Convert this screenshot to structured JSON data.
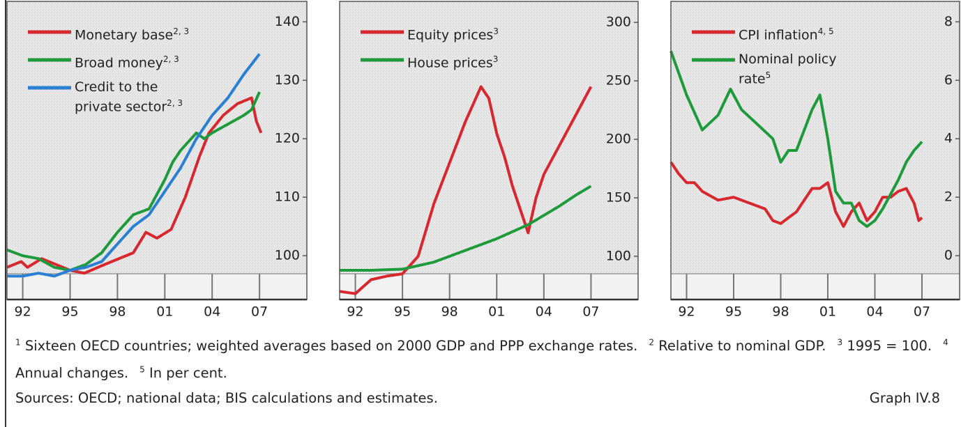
{
  "chart_data": [
    {
      "type": "line",
      "xlim": [
        1991,
        2010
      ],
      "xticks": [
        {
          "value": 1992,
          "label": "92"
        },
        {
          "value": 1995,
          "label": "95"
        },
        {
          "value": 1998,
          "label": "98"
        },
        {
          "value": 2001,
          "label": "01"
        },
        {
          "value": 2004,
          "label": "04"
        },
        {
          "value": 2007,
          "label": "07"
        }
      ],
      "ylim": [
        92.5,
        143.5
      ],
      "yticks": [
        100,
        110,
        120,
        130,
        140
      ],
      "series": [
        {
          "name": "Monetary base",
          "footnote": "2, 3",
          "color": "#d6282e",
          "x": [
            1991,
            1991.9,
            1992.3,
            1993.2,
            1995,
            1995.9,
            1997.2,
            1999,
            1999.8,
            2000.5,
            2001.4,
            2002.3,
            2003.2,
            2003.8,
            2004.7,
            2005.6,
            2006.5,
            2006.8,
            2007.1
          ],
          "values": [
            98,
            99,
            98,
            99.5,
            97.5,
            97,
            98.5,
            100.5,
            104,
            103,
            104.5,
            110,
            117,
            121,
            124,
            126,
            127,
            123,
            121
          ]
        },
        {
          "name": "Broad money",
          "footnote": "2, 3",
          "color": "#1e9a3c",
          "x": [
            1991,
            1992,
            1993,
            1994,
            1995,
            1996,
            1997,
            1998,
            1999,
            2000,
            2001,
            2001.5,
            2002,
            2003,
            2003.5,
            2004,
            2005,
            2006,
            2006.5,
            2007
          ],
          "values": [
            101,
            100,
            99.5,
            98,
            97.5,
            98.5,
            100.5,
            104,
            107,
            108,
            113,
            116,
            118,
            121,
            120,
            121,
            122.5,
            124,
            125,
            128
          ]
        },
        {
          "name": "Credit to the private sector",
          "footnote": "2, 3",
          "color": "#2a7fd4",
          "x": [
            1991,
            1992,
            1993,
            1994,
            1995,
            1996,
            1997,
            1998,
            1999,
            2000,
            2001,
            2002,
            2003,
            2004,
            2005,
            2006,
            2007
          ],
          "values": [
            96.5,
            96.5,
            97,
            96.5,
            97.5,
            98,
            99,
            102,
            105,
            107,
            111,
            115,
            120,
            124,
            127,
            131,
            134.5
          ]
        }
      ]
    },
    {
      "type": "line",
      "xlim": [
        1991,
        2010
      ],
      "xticks": [
        {
          "value": 1992,
          "label": "92"
        },
        {
          "value": 1995,
          "label": "95"
        },
        {
          "value": 1998,
          "label": "98"
        },
        {
          "value": 2001,
          "label": "01"
        },
        {
          "value": 2004,
          "label": "04"
        },
        {
          "value": 2007,
          "label": "07"
        }
      ],
      "ylim": [
        63,
        318
      ],
      "yticks": [
        100,
        150,
        200,
        250,
        300
      ],
      "series": [
        {
          "name": "Equity prices",
          "footnote": "3",
          "color": "#d6282e",
          "x": [
            1991,
            1992,
            1993,
            1994,
            1995,
            1996,
            1997,
            1998,
            1999,
            2000,
            2000.5,
            2001,
            2001.5,
            2002,
            2002.5,
            2003,
            2003.5,
            2004,
            2005,
            2006,
            2007
          ],
          "values": [
            70,
            68,
            80,
            83,
            85,
            100,
            145,
            180,
            215,
            245,
            235,
            205,
            185,
            160,
            140,
            120,
            150,
            170,
            195,
            220,
            245
          ]
        },
        {
          "name": "House prices",
          "footnote": "3",
          "color": "#1e9a3c",
          "x": [
            1991,
            1993,
            1995,
            1997,
            1999,
            2001,
            2003,
            2005,
            2006,
            2007
          ],
          "values": [
            88,
            88,
            89,
            95,
            105,
            115,
            127,
            143,
            152,
            160
          ]
        }
      ]
    },
    {
      "type": "line",
      "xlim": [
        1991,
        2009.4
      ],
      "xticks": [
        {
          "value": 1992,
          "label": "92"
        },
        {
          "value": 1995,
          "label": "95"
        },
        {
          "value": 1998,
          "label": "98"
        },
        {
          "value": 2001,
          "label": "01"
        },
        {
          "value": 2004,
          "label": "04"
        },
        {
          "value": 2007,
          "label": "07"
        }
      ],
      "ylim": [
        -1.5,
        8.7
      ],
      "yticks": [
        0,
        2,
        4,
        6,
        8
      ],
      "series": [
        {
          "name": "CPI inflation",
          "footnote": "4, 5",
          "color": "#d6282e",
          "x": [
            1991,
            1991.5,
            1992,
            1992.5,
            1993,
            1994,
            1995,
            1996,
            1997,
            1997.5,
            1998,
            1998.5,
            1999,
            2000,
            2000.5,
            2001,
            2001.5,
            2002,
            2002.5,
            2003,
            2003.5,
            2004,
            2004.5,
            2005,
            2005.5,
            2006,
            2006.5,
            2006.8,
            2007
          ],
          "values": [
            3.2,
            2.8,
            2.5,
            2.5,
            2.2,
            1.9,
            2.0,
            1.8,
            1.6,
            1.2,
            1.1,
            1.3,
            1.5,
            2.3,
            2.3,
            2.5,
            1.5,
            1.0,
            1.5,
            1.8,
            1.2,
            1.5,
            2.0,
            2.0,
            2.2,
            2.3,
            1.8,
            1.2,
            1.3
          ]
        },
        {
          "name": "Nominal policy rate",
          "footnote": "5",
          "color": "#1e9a3c",
          "x": [
            1991,
            1992,
            1993,
            1994,
            1994.8,
            1995.5,
            1996.5,
            1997.5,
            1998,
            1998.5,
            1999,
            2000,
            2000.5,
            2001,
            2001.5,
            2002,
            2002.5,
            2003,
            2003.5,
            2004,
            2004.5,
            2005,
            2005.5,
            2006,
            2006.5,
            2007
          ],
          "values": [
            7.0,
            5.5,
            4.3,
            4.8,
            5.7,
            5.0,
            4.5,
            4.0,
            3.2,
            3.6,
            3.6,
            5.0,
            5.5,
            4.0,
            2.2,
            1.8,
            1.8,
            1.2,
            1.0,
            1.2,
            1.6,
            2.1,
            2.6,
            3.2,
            3.6,
            3.9
          ]
        }
      ]
    }
  ],
  "footnotes": [
    {
      "mark": "1",
      "text": "Sixteen OECD countries; weighted averages based on 2000 GDP and PPP exchange rates."
    },
    {
      "mark": "2",
      "text": "Relative to nominal GDP."
    },
    {
      "mark": "3",
      "text": "1995 = 100."
    },
    {
      "mark": "4",
      "text": "Annual changes."
    },
    {
      "mark": "5",
      "text": "In per cent."
    }
  ],
  "sources": "Sources: OECD; national data; BIS calculations and estimates.",
  "graph_label": "Graph IV.8"
}
